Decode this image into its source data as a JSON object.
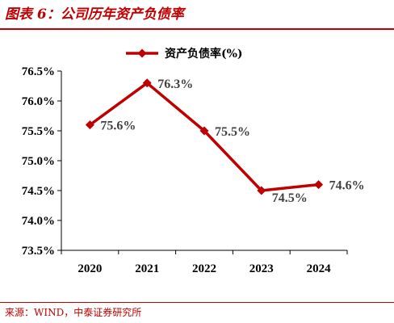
{
  "header": {
    "title": "图表 6：公司历年资产负债率"
  },
  "footer": {
    "source": "来源：WIND，中泰证券研究所"
  },
  "chart_data": {
    "type": "line",
    "categories": [
      "2020",
      "2021",
      "2022",
      "2023",
      "2024"
    ],
    "series": [
      {
        "name": "资产负债率(%)",
        "values": [
          75.6,
          76.3,
          75.5,
          74.5,
          74.6
        ],
        "labels": [
          "75.6%",
          "76.3%",
          "75.5%",
          "74.5%",
          "74.6%"
        ],
        "color": "#c00000"
      }
    ],
    "ylim": [
      73.5,
      76.5
    ],
    "yticks": [
      76.5,
      76.0,
      75.5,
      75.0,
      74.5,
      74.0,
      73.5
    ],
    "ytick_labels": [
      "76.5%",
      "76.0%",
      "75.5%",
      "75.0%",
      "74.5%",
      "74.0%",
      "73.5%"
    ],
    "legend": "top-center",
    "grid": false
  }
}
